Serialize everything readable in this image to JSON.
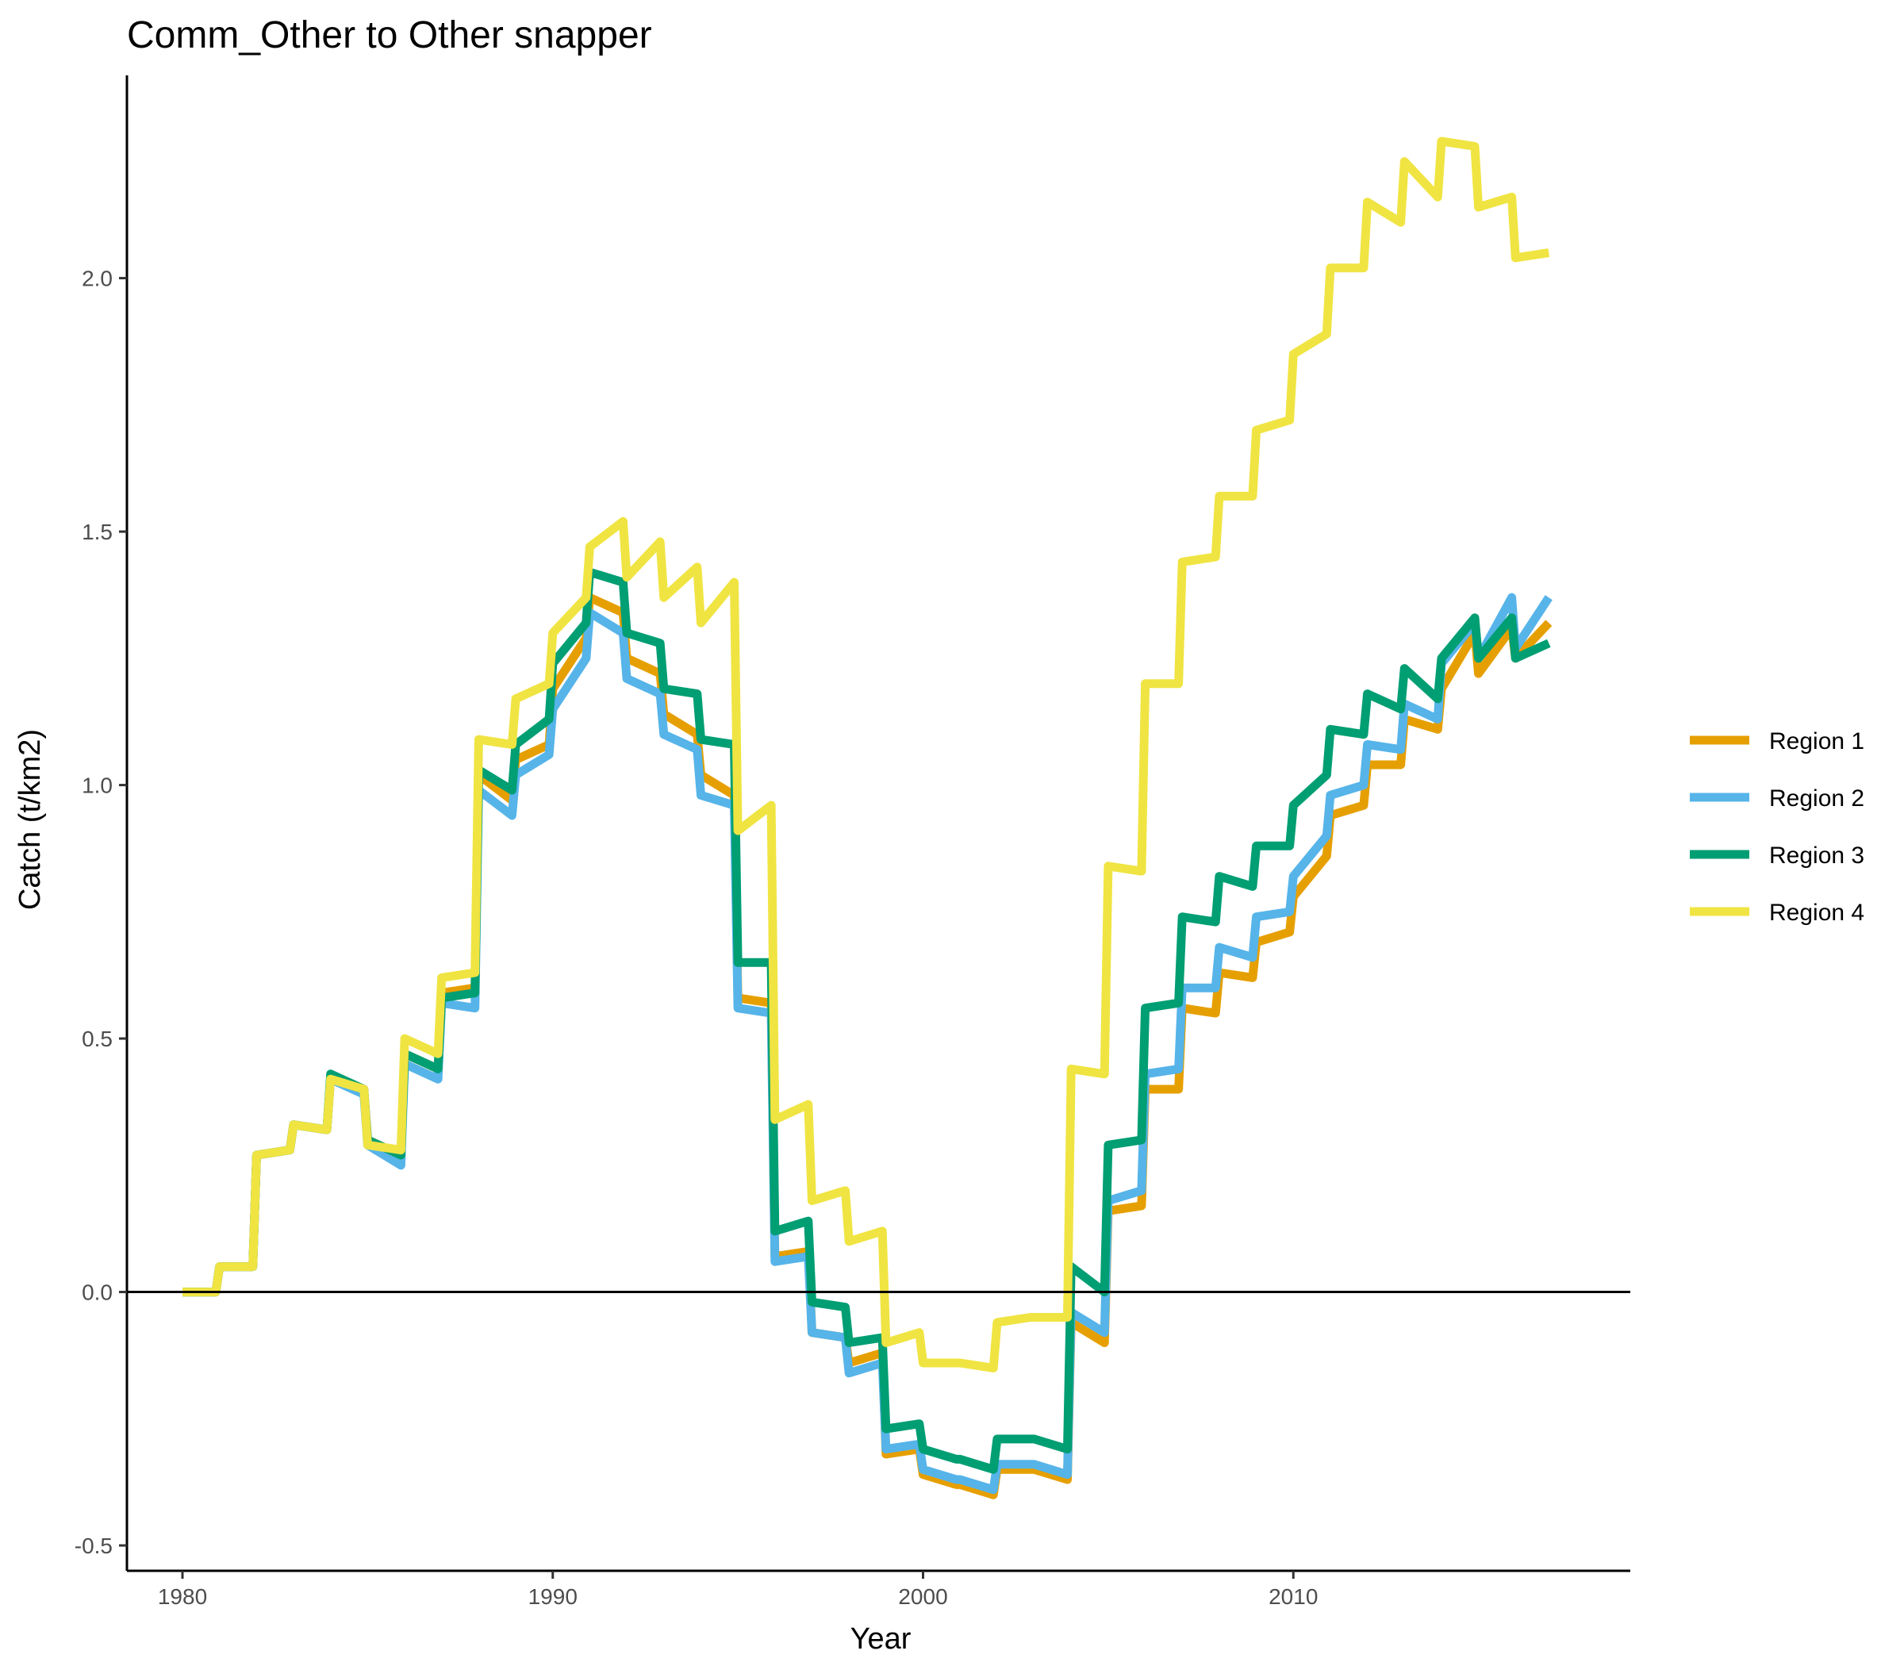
{
  "chart_data": {
    "type": "line",
    "title": "Comm_Other to Other snapper",
    "xlabel": "Year",
    "ylabel": "Catch (t/km2)",
    "xlim": [
      1978.5,
      2019.1
    ],
    "ylim": [
      -0.55,
      2.4
    ],
    "x_ticks": [
      1980,
      1990,
      2000,
      2010
    ],
    "y_ticks": [
      -0.5,
      0.0,
      0.5,
      1.0,
      1.5,
      2.0
    ],
    "x_tick_labels": [
      "1980",
      "1990",
      "2000",
      "2010"
    ],
    "y_tick_labels": [
      "-0.5",
      "0.0",
      "0.5",
      "1.0",
      "1.5",
      "2.0"
    ],
    "grid": false,
    "zero_line": true,
    "legend_position": "right",
    "series": [
      {
        "name": "Region 1",
        "color": "#E69F00",
        "points": [
          [
            1980,
            0.0
          ],
          [
            1980.9,
            0.0
          ],
          [
            1981,
            0.05
          ],
          [
            1981.9,
            0.05
          ],
          [
            1982,
            0.27
          ],
          [
            1982.9,
            0.28
          ],
          [
            1983,
            0.33
          ],
          [
            1983.9,
            0.32
          ],
          [
            1984,
            0.42
          ],
          [
            1984.9,
            0.4
          ],
          [
            1985,
            0.3
          ],
          [
            1985.9,
            0.27
          ],
          [
            1986,
            0.47
          ],
          [
            1986.9,
            0.44
          ],
          [
            1987,
            0.59
          ],
          [
            1987.9,
            0.6
          ],
          [
            1988,
            1.02
          ],
          [
            1988.9,
            0.97
          ],
          [
            1989,
            1.05
          ],
          [
            1989.9,
            1.08
          ],
          [
            1990,
            1.19
          ],
          [
            1990.9,
            1.29
          ],
          [
            1991,
            1.37
          ],
          [
            1991.9,
            1.34
          ],
          [
            1992,
            1.25
          ],
          [
            1992.9,
            1.22
          ],
          [
            1993,
            1.14
          ],
          [
            1993.9,
            1.1
          ],
          [
            1994,
            1.02
          ],
          [
            1994.9,
            0.98
          ],
          [
            1995,
            0.58
          ],
          [
            1995.9,
            0.57
          ],
          [
            1996,
            0.07
          ],
          [
            1996.9,
            0.08
          ],
          [
            1997,
            -0.08
          ],
          [
            1997.9,
            -0.09
          ],
          [
            1998,
            -0.14
          ],
          [
            1998.9,
            -0.12
          ],
          [
            1999,
            -0.32
          ],
          [
            1999.9,
            -0.31
          ],
          [
            2000,
            -0.36
          ],
          [
            2000.9,
            -0.38
          ],
          [
            2001,
            -0.38
          ],
          [
            2001.9,
            -0.4
          ],
          [
            2002,
            -0.35
          ],
          [
            2002.9,
            -0.35
          ],
          [
            2003,
            -0.35
          ],
          [
            2003.9,
            -0.37
          ],
          [
            2004,
            -0.06
          ],
          [
            2004.9,
            -0.1
          ],
          [
            2005,
            0.16
          ],
          [
            2005.9,
            0.17
          ],
          [
            2006,
            0.4
          ],
          [
            2006.9,
            0.4
          ],
          [
            2007,
            0.56
          ],
          [
            2007.9,
            0.55
          ],
          [
            2008,
            0.63
          ],
          [
            2008.9,
            0.62
          ],
          [
            2009,
            0.69
          ],
          [
            2009.9,
            0.71
          ],
          [
            2010,
            0.78
          ],
          [
            2010.9,
            0.86
          ],
          [
            2011,
            0.94
          ],
          [
            2011.9,
            0.96
          ],
          [
            2012,
            1.04
          ],
          [
            2012.9,
            1.04
          ],
          [
            2013,
            1.13
          ],
          [
            2013.9,
            1.11
          ],
          [
            2014,
            1.19
          ],
          [
            2014.9,
            1.3
          ],
          [
            2015,
            1.22
          ],
          [
            2015.9,
            1.31
          ],
          [
            2016,
            1.25
          ],
          [
            2016.9,
            1.32
          ]
        ]
      },
      {
        "name": "Region 2",
        "color": "#56B4E9",
        "points": [
          [
            1980,
            0.0
          ],
          [
            1980.9,
            0.0
          ],
          [
            1981,
            0.05
          ],
          [
            1981.9,
            0.05
          ],
          [
            1982,
            0.27
          ],
          [
            1982.9,
            0.28
          ],
          [
            1983,
            0.33
          ],
          [
            1983.9,
            0.32
          ],
          [
            1984,
            0.42
          ],
          [
            1984.9,
            0.39
          ],
          [
            1985,
            0.29
          ],
          [
            1985.9,
            0.25
          ],
          [
            1986,
            0.45
          ],
          [
            1986.9,
            0.42
          ],
          [
            1987,
            0.57
          ],
          [
            1987.9,
            0.56
          ],
          [
            1988,
            0.99
          ],
          [
            1988.9,
            0.94
          ],
          [
            1989,
            1.02
          ],
          [
            1989.9,
            1.06
          ],
          [
            1990,
            1.15
          ],
          [
            1990.9,
            1.25
          ],
          [
            1991,
            1.34
          ],
          [
            1991.9,
            1.3
          ],
          [
            1992,
            1.21
          ],
          [
            1992.9,
            1.18
          ],
          [
            1993,
            1.1
          ],
          [
            1993.9,
            1.07
          ],
          [
            1994,
            0.98
          ],
          [
            1994.9,
            0.96
          ],
          [
            1995,
            0.56
          ],
          [
            1995.9,
            0.55
          ],
          [
            1996,
            0.06
          ],
          [
            1996.9,
            0.07
          ],
          [
            1997,
            -0.08
          ],
          [
            1997.9,
            -0.09
          ],
          [
            1998,
            -0.16
          ],
          [
            1998.9,
            -0.14
          ],
          [
            1999,
            -0.31
          ],
          [
            1999.9,
            -0.3
          ],
          [
            2000,
            -0.35
          ],
          [
            2000.9,
            -0.37
          ],
          [
            2001,
            -0.37
          ],
          [
            2001.9,
            -0.39
          ],
          [
            2002,
            -0.34
          ],
          [
            2002.9,
            -0.34
          ],
          [
            2003,
            -0.34
          ],
          [
            2003.9,
            -0.36
          ],
          [
            2004,
            -0.04
          ],
          [
            2004.9,
            -0.08
          ],
          [
            2005,
            0.18
          ],
          [
            2005.9,
            0.2
          ],
          [
            2006,
            0.43
          ],
          [
            2006.9,
            0.44
          ],
          [
            2007,
            0.6
          ],
          [
            2007.9,
            0.6
          ],
          [
            2008,
            0.68
          ],
          [
            2008.9,
            0.66
          ],
          [
            2009,
            0.74
          ],
          [
            2009.9,
            0.75
          ],
          [
            2010,
            0.82
          ],
          [
            2010.9,
            0.9
          ],
          [
            2011,
            0.98
          ],
          [
            2011.9,
            1.0
          ],
          [
            2012,
            1.08
          ],
          [
            2012.9,
            1.07
          ],
          [
            2013,
            1.16
          ],
          [
            2013.9,
            1.13
          ],
          [
            2014,
            1.24
          ],
          [
            2014.9,
            1.32
          ],
          [
            2015,
            1.25
          ],
          [
            2015.9,
            1.37
          ],
          [
            2016,
            1.27
          ],
          [
            2016.9,
            1.37
          ]
        ]
      },
      {
        "name": "Region 3",
        "color": "#009E73",
        "points": [
          [
            1980,
            0.0
          ],
          [
            1980.9,
            0.0
          ],
          [
            1981,
            0.05
          ],
          [
            1981.9,
            0.05
          ],
          [
            1982,
            0.27
          ],
          [
            1982.9,
            0.28
          ],
          [
            1983,
            0.33
          ],
          [
            1983.9,
            0.32
          ],
          [
            1984,
            0.43
          ],
          [
            1984.9,
            0.4
          ],
          [
            1985,
            0.3
          ],
          [
            1985.9,
            0.27
          ],
          [
            1986,
            0.47
          ],
          [
            1986.9,
            0.44
          ],
          [
            1987,
            0.58
          ],
          [
            1987.9,
            0.59
          ],
          [
            1988,
            1.03
          ],
          [
            1988.9,
            0.99
          ],
          [
            1989,
            1.08
          ],
          [
            1989.9,
            1.13
          ],
          [
            1990,
            1.24
          ],
          [
            1990.9,
            1.32
          ],
          [
            1991,
            1.42
          ],
          [
            1991.9,
            1.4
          ],
          [
            1992,
            1.3
          ],
          [
            1992.9,
            1.28
          ],
          [
            1993,
            1.19
          ],
          [
            1993.9,
            1.18
          ],
          [
            1994,
            1.09
          ],
          [
            1994.9,
            1.08
          ],
          [
            1995,
            0.65
          ],
          [
            1995.9,
            0.65
          ],
          [
            1996,
            0.12
          ],
          [
            1996.9,
            0.14
          ],
          [
            1997,
            -0.02
          ],
          [
            1997.9,
            -0.03
          ],
          [
            1998,
            -0.1
          ],
          [
            1998.9,
            -0.09
          ],
          [
            1999,
            -0.27
          ],
          [
            1999.9,
            -0.26
          ],
          [
            2000,
            -0.31
          ],
          [
            2000.9,
            -0.33
          ],
          [
            2001,
            -0.33
          ],
          [
            2001.9,
            -0.35
          ],
          [
            2002,
            -0.29
          ],
          [
            2002.9,
            -0.29
          ],
          [
            2003,
            -0.29
          ],
          [
            2003.9,
            -0.31
          ],
          [
            2004,
            0.05
          ],
          [
            2004.9,
            0.0
          ],
          [
            2005,
            0.29
          ],
          [
            2005.9,
            0.3
          ],
          [
            2006,
            0.56
          ],
          [
            2006.9,
            0.57
          ],
          [
            2007,
            0.74
          ],
          [
            2007.9,
            0.73
          ],
          [
            2008,
            0.82
          ],
          [
            2008.9,
            0.8
          ],
          [
            2009,
            0.88
          ],
          [
            2009.9,
            0.88
          ],
          [
            2010,
            0.96
          ],
          [
            2010.9,
            1.02
          ],
          [
            2011,
            1.11
          ],
          [
            2011.9,
            1.1
          ],
          [
            2012,
            1.18
          ],
          [
            2012.9,
            1.15
          ],
          [
            2013,
            1.23
          ],
          [
            2013.9,
            1.17
          ],
          [
            2014,
            1.25
          ],
          [
            2014.9,
            1.33
          ],
          [
            2015,
            1.25
          ],
          [
            2015.9,
            1.33
          ],
          [
            2016,
            1.25
          ],
          [
            2016.9,
            1.28
          ]
        ]
      },
      {
        "name": "Region 4",
        "color": "#F0E442",
        "points": [
          [
            1980,
            0.0
          ],
          [
            1980.9,
            0.0
          ],
          [
            1981,
            0.05
          ],
          [
            1981.9,
            0.05
          ],
          [
            1982,
            0.27
          ],
          [
            1982.9,
            0.28
          ],
          [
            1983,
            0.33
          ],
          [
            1983.9,
            0.32
          ],
          [
            1984,
            0.42
          ],
          [
            1984.9,
            0.4
          ],
          [
            1985,
            0.29
          ],
          [
            1985.9,
            0.28
          ],
          [
            1986,
            0.5
          ],
          [
            1986.9,
            0.47
          ],
          [
            1987,
            0.62
          ],
          [
            1987.9,
            0.63
          ],
          [
            1988,
            1.09
          ],
          [
            1988.9,
            1.08
          ],
          [
            1989,
            1.17
          ],
          [
            1989.9,
            1.2
          ],
          [
            1990,
            1.3
          ],
          [
            1990.9,
            1.37
          ],
          [
            1991,
            1.47
          ],
          [
            1991.9,
            1.52
          ],
          [
            1992,
            1.41
          ],
          [
            1992.9,
            1.48
          ],
          [
            1993,
            1.37
          ],
          [
            1993.9,
            1.43
          ],
          [
            1994,
            1.32
          ],
          [
            1994.9,
            1.4
          ],
          [
            1995,
            0.91
          ],
          [
            1995.9,
            0.96
          ],
          [
            1996,
            0.34
          ],
          [
            1996.9,
            0.37
          ],
          [
            1997,
            0.18
          ],
          [
            1997.9,
            0.2
          ],
          [
            1998,
            0.1
          ],
          [
            1998.9,
            0.12
          ],
          [
            1999,
            -0.1
          ],
          [
            1999.9,
            -0.08
          ],
          [
            2000,
            -0.14
          ],
          [
            2000.9,
            -0.14
          ],
          [
            2001,
            -0.14
          ],
          [
            2001.9,
            -0.15
          ],
          [
            2002,
            -0.06
          ],
          [
            2002.9,
            -0.05
          ],
          [
            2003,
            -0.05
          ],
          [
            2003.9,
            -0.05
          ],
          [
            2004,
            0.44
          ],
          [
            2004.9,
            0.43
          ],
          [
            2005,
            0.84
          ],
          [
            2005.9,
            0.83
          ],
          [
            2006,
            1.2
          ],
          [
            2006.9,
            1.2
          ],
          [
            2007,
            1.44
          ],
          [
            2007.9,
            1.45
          ],
          [
            2008,
            1.57
          ],
          [
            2008.9,
            1.57
          ],
          [
            2009,
            1.7
          ],
          [
            2009.9,
            1.72
          ],
          [
            2010,
            1.85
          ],
          [
            2010.9,
            1.89
          ],
          [
            2011,
            2.02
          ],
          [
            2011.9,
            2.02
          ],
          [
            2012,
            2.15
          ],
          [
            2012.9,
            2.11
          ],
          [
            2013,
            2.23
          ],
          [
            2013.9,
            2.16
          ],
          [
            2014,
            2.27
          ],
          [
            2014.9,
            2.26
          ],
          [
            2015,
            2.14
          ],
          [
            2015.9,
            2.16
          ],
          [
            2016,
            2.04
          ],
          [
            2016.9,
            2.05
          ]
        ]
      }
    ]
  }
}
